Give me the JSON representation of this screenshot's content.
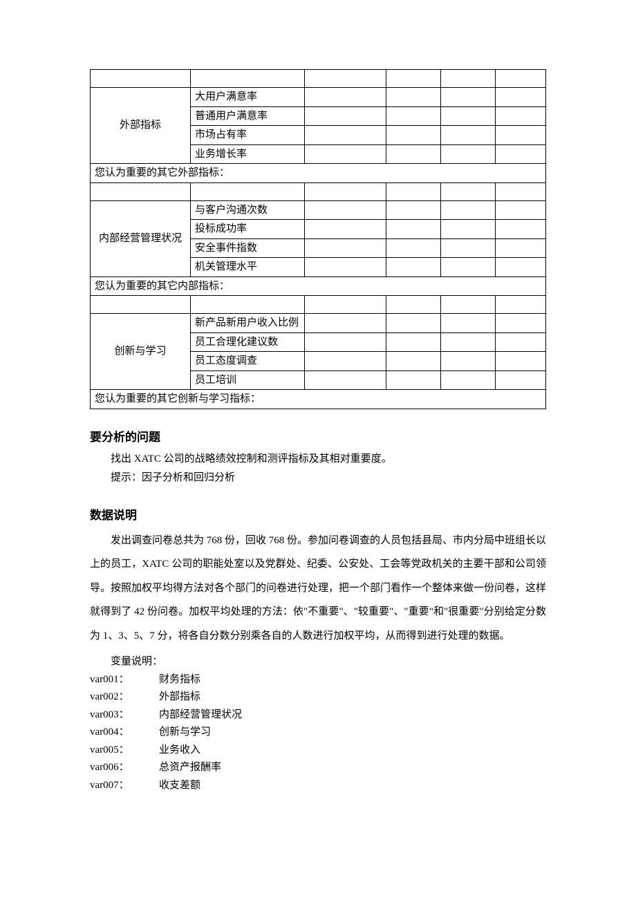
{
  "table": {
    "sections": [
      {
        "category": "外部指标",
        "category_rowspan": 4,
        "leading_empty_row": true,
        "rows": [
          "大用户满意率",
          "普通用户满意率",
          "市场占有率",
          "业务增长率"
        ],
        "prompt": "您认为重要的其它外部指标："
      },
      {
        "category": "内部经营管理状况",
        "category_rowspan": 4,
        "leading_empty_row": true,
        "rows": [
          "与客户沟通次数",
          "投标成功率",
          "安全事件指数",
          "机关管理水平"
        ],
        "prompt": "您认为重要的其它内部指标："
      },
      {
        "category": "创新与学习",
        "category_rowspan": 4,
        "leading_empty_row": true,
        "rows": [
          "新产品新用户收入比例",
          "员工合理化建议数",
          "员工态度调查",
          "员工培训"
        ],
        "prompt": "您认为重要的其它创新与学习指标："
      }
    ]
  },
  "sections": {
    "analysis": {
      "heading": "要分析的问题",
      "line1": "找出 XATC 公司的战略绩效控制和测评指标及其相对重要度。",
      "line2": "提示：因子分析和回归分析"
    },
    "data_desc": {
      "heading": "数据说明",
      "paragraph": "发出调查问卷总共为 768 份，回收 768 份。参加问卷调查的人员包括县局、市内分局中班组长以上的员工，XATC 公司的职能处室以及党群处、纪委、公安处、工会等党政机关的主要干部和公司领导。按照加权平均得方法对各个部门的问卷进行处理，把一个部门看作一个整体来做一份问卷，这样就得到了 42 份问卷。加权平均处理的方法：依\"不重要\"、\"较重要\"、\"重要\"和\"很重要\"分别给定分数为 1、3、5、7 分，将各自分数分别乘各自的人数进行加权平均，从而得到进行处理的数据。",
      "var_label": "变量说明：",
      "vars": [
        {
          "code": "var001：",
          "name": "财务指标"
        },
        {
          "code": "var002：",
          "name": "外部指标"
        },
        {
          "code": "var003：",
          "name": "内部经营管理状况"
        },
        {
          "code": "var004：",
          "name": "创新与学习"
        },
        {
          "code": "var005：",
          "name": "业务收入"
        },
        {
          "code": "var006：",
          "name": "总资产报酬率"
        },
        {
          "code": "var007：",
          "name": "收支差额"
        }
      ]
    }
  },
  "style": {
    "background": "#ffffff",
    "text_color": "#000000",
    "border_color": "#000000",
    "body_fontsize": 16,
    "table_fontsize": 15,
    "heading_fontsize": 17
  }
}
